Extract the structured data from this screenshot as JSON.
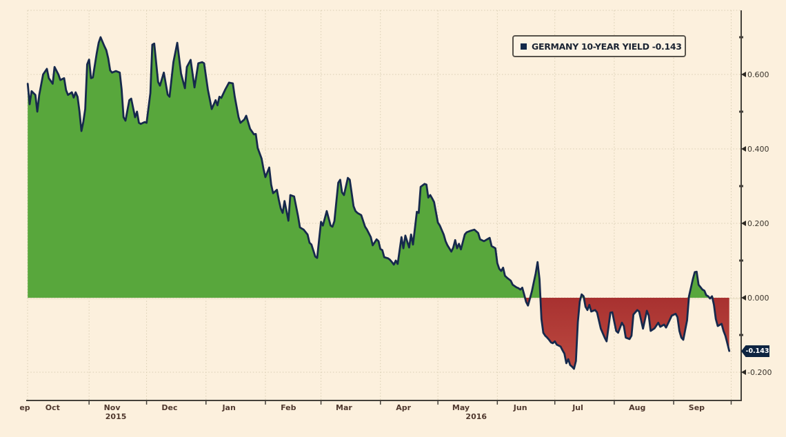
{
  "window": {
    "background": "#fcf0dd"
  },
  "legend": {
    "text": "GERMANY 10-YEAR YIELD -0.143",
    "marker": "square-icon",
    "marker_color": "#13294a"
  },
  "last_price_badge": {
    "text": "-0.143"
  },
  "chart_data": {
    "type": "area",
    "series_name": "GERMANY 10-YEAR YIELD",
    "last_value": -0.143,
    "legend_position": "top-right",
    "grid": true,
    "x_axis": {
      "start_date": "2015-09-30",
      "end_date": "2016-09-30",
      "month_tick_dates": [
        "2015-11-01",
        "2015-12-01",
        "2016-01-01",
        "2016-02-01",
        "2016-03-01",
        "2016-04-01",
        "2016-05-01",
        "2016-06-01",
        "2016-07-01",
        "2016-08-01",
        "2016-09-01",
        "2016-10-01"
      ],
      "month_labels": [
        {
          "text": "ep",
          "px": 36
        },
        {
          "text": "Oct",
          "date": "2015-10-13"
        },
        {
          "text": "Nov",
          "date": "2015-11-13"
        },
        {
          "text": "Dec",
          "date": "2015-12-13"
        },
        {
          "text": "Jan",
          "date": "2016-01-13"
        },
        {
          "text": "Feb",
          "date": "2016-02-13"
        },
        {
          "text": "Mar",
          "date": "2016-03-13"
        },
        {
          "text": "Apr",
          "date": "2016-04-13"
        },
        {
          "text": "May",
          "date": "2016-05-13"
        },
        {
          "text": "Jun",
          "date": "2016-06-13"
        },
        {
          "text": "Jul",
          "date": "2016-07-13"
        },
        {
          "text": "Aug",
          "date": "2016-08-13"
        },
        {
          "text": "Sep",
          "date": "2016-09-13"
        }
      ],
      "year_labels": [
        {
          "text": "2015",
          "date": "2015-11-15"
        },
        {
          "text": "2016",
          "date": "2016-05-21"
        }
      ]
    },
    "y_axis": {
      "range": [
        -0.276,
        0.772
      ],
      "major_ticks": [
        {
          "value": 0.6,
          "label": "0.600"
        },
        {
          "value": 0.4,
          "label": "0.400"
        },
        {
          "value": 0.2,
          "label": "0.200"
        },
        {
          "value": 0.0,
          "label": "0.000"
        },
        {
          "value": -0.2,
          "label": "-0.200"
        }
      ],
      "minor_tick_values": [
        0.7,
        0.5,
        0.3,
        0.1,
        -0.1
      ]
    },
    "colors": {
      "line": "#16294c",
      "positive_fill": "#58a73c",
      "negative_fill_top": "#a83130",
      "negative_fill_bottom": "#bf4d42",
      "grid": "#d8cdb2",
      "zero_line": "#ece2c8",
      "axis": "#44403a",
      "y_label": "#38322a",
      "x_label": "#4f382e",
      "badge_bg": "#0e2441"
    },
    "points": [
      [
        "2015-09-30",
        0.575
      ],
      [
        "2015-10-01",
        0.52
      ],
      [
        "2015-10-02",
        0.555
      ],
      [
        "2015-10-04",
        0.545
      ],
      [
        "2015-10-05",
        0.5
      ],
      [
        "2015-10-06",
        0.545
      ],
      [
        "2015-10-08",
        0.6
      ],
      [
        "2015-10-10",
        0.615
      ],
      [
        "2015-10-11",
        0.59
      ],
      [
        "2015-10-13",
        0.575
      ],
      [
        "2015-10-14",
        0.62
      ],
      [
        "2015-10-16",
        0.6
      ],
      [
        "2015-10-17",
        0.585
      ],
      [
        "2015-10-19",
        0.59
      ],
      [
        "2015-10-20",
        0.558
      ],
      [
        "2015-10-21",
        0.545
      ],
      [
        "2015-10-23",
        0.552
      ],
      [
        "2015-10-24",
        0.538
      ],
      [
        "2015-10-25",
        0.552
      ],
      [
        "2015-10-26",
        0.54
      ],
      [
        "2015-10-27",
        0.5
      ],
      [
        "2015-10-28",
        0.448
      ],
      [
        "2015-10-29",
        0.472
      ],
      [
        "2015-10-30",
        0.507
      ],
      [
        "2015-10-31",
        0.627
      ],
      [
        "2015-11-01",
        0.64
      ],
      [
        "2015-11-02",
        0.59
      ],
      [
        "2015-11-03",
        0.592
      ],
      [
        "2015-11-05",
        0.657
      ],
      [
        "2015-11-06",
        0.685
      ],
      [
        "2015-11-07",
        0.7
      ],
      [
        "2015-11-09",
        0.676
      ],
      [
        "2015-11-10",
        0.665
      ],
      [
        "2015-11-11",
        0.643
      ],
      [
        "2015-11-12",
        0.611
      ],
      [
        "2015-11-13",
        0.605
      ],
      [
        "2015-11-15",
        0.609
      ],
      [
        "2015-11-17",
        0.605
      ],
      [
        "2015-11-18",
        0.56
      ],
      [
        "2015-11-19",
        0.485
      ],
      [
        "2015-11-20",
        0.476
      ],
      [
        "2015-11-22",
        0.531
      ],
      [
        "2015-11-23",
        0.535
      ],
      [
        "2015-11-25",
        0.485
      ],
      [
        "2015-11-26",
        0.5
      ],
      [
        "2015-11-27",
        0.47
      ],
      [
        "2015-11-28",
        0.467
      ],
      [
        "2015-11-30",
        0.472
      ],
      [
        "2015-12-01",
        0.47
      ],
      [
        "2015-12-03",
        0.55
      ],
      [
        "2015-12-04",
        0.68
      ],
      [
        "2015-12-05",
        0.683
      ],
      [
        "2015-12-07",
        0.58
      ],
      [
        "2015-12-08",
        0.57
      ],
      [
        "2015-12-10",
        0.605
      ],
      [
        "2015-12-12",
        0.546
      ],
      [
        "2015-12-13",
        0.54
      ],
      [
        "2015-12-15",
        0.633
      ],
      [
        "2015-12-17",
        0.685
      ],
      [
        "2015-12-19",
        0.602
      ],
      [
        "2015-12-21",
        0.563
      ],
      [
        "2015-12-22",
        0.62
      ],
      [
        "2015-12-24",
        0.639
      ],
      [
        "2015-12-26",
        0.565
      ],
      [
        "2015-12-28",
        0.63
      ],
      [
        "2015-12-30",
        0.633
      ],
      [
        "2015-12-31",
        0.63
      ],
      [
        "2016-01-02",
        0.559
      ],
      [
        "2016-01-04",
        0.507
      ],
      [
        "2016-01-06",
        0.531
      ],
      [
        "2016-01-07",
        0.517
      ],
      [
        "2016-01-08",
        0.54
      ],
      [
        "2016-01-09",
        0.537
      ],
      [
        "2016-01-11",
        0.559
      ],
      [
        "2016-01-13",
        0.578
      ],
      [
        "2016-01-15",
        0.576
      ],
      [
        "2016-01-16",
        0.54
      ],
      [
        "2016-01-18",
        0.485
      ],
      [
        "2016-01-19",
        0.47
      ],
      [
        "2016-01-21",
        0.479
      ],
      [
        "2016-01-22",
        0.489
      ],
      [
        "2016-01-24",
        0.454
      ],
      [
        "2016-01-26",
        0.439
      ],
      [
        "2016-01-27",
        0.44
      ],
      [
        "2016-01-28",
        0.402
      ],
      [
        "2016-01-30",
        0.374
      ],
      [
        "2016-01-31",
        0.346
      ],
      [
        "2016-02-01",
        0.324
      ],
      [
        "2016-02-03",
        0.35
      ],
      [
        "2016-02-04",
        0.304
      ],
      [
        "2016-02-05",
        0.281
      ],
      [
        "2016-02-07",
        0.29
      ],
      [
        "2016-02-08",
        0.263
      ],
      [
        "2016-02-09",
        0.24
      ],
      [
        "2016-02-10",
        0.228
      ],
      [
        "2016-02-11",
        0.26
      ],
      [
        "2016-02-13",
        0.207
      ],
      [
        "2016-02-14",
        0.276
      ],
      [
        "2016-02-16",
        0.272
      ],
      [
        "2016-02-18",
        0.22
      ],
      [
        "2016-02-19",
        0.189
      ],
      [
        "2016-02-21",
        0.183
      ],
      [
        "2016-02-23",
        0.17
      ],
      [
        "2016-02-24",
        0.148
      ],
      [
        "2016-02-25",
        0.143
      ],
      [
        "2016-02-27",
        0.111
      ],
      [
        "2016-02-28",
        0.107
      ],
      [
        "2016-03-01",
        0.204
      ],
      [
        "2016-03-02",
        0.194
      ],
      [
        "2016-03-04",
        0.233
      ],
      [
        "2016-03-06",
        0.194
      ],
      [
        "2016-03-07",
        0.191
      ],
      [
        "2016-03-08",
        0.206
      ],
      [
        "2016-03-10",
        0.309
      ],
      [
        "2016-03-11",
        0.317
      ],
      [
        "2016-03-12",
        0.283
      ],
      [
        "2016-03-13",
        0.276
      ],
      [
        "2016-03-15",
        0.322
      ],
      [
        "2016-03-16",
        0.317
      ],
      [
        "2016-03-18",
        0.246
      ],
      [
        "2016-03-19",
        0.233
      ],
      [
        "2016-03-20",
        0.228
      ],
      [
        "2016-03-22",
        0.222
      ],
      [
        "2016-03-24",
        0.191
      ],
      [
        "2016-03-25",
        0.183
      ],
      [
        "2016-03-27",
        0.163
      ],
      [
        "2016-03-28",
        0.141
      ],
      [
        "2016-03-30",
        0.157
      ],
      [
        "2016-03-31",
        0.152
      ],
      [
        "2016-04-01",
        0.131
      ],
      [
        "2016-04-02",
        0.128
      ],
      [
        "2016-04-03",
        0.109
      ],
      [
        "2016-04-05",
        0.106
      ],
      [
        "2016-04-06",
        0.102
      ],
      [
        "2016-04-07",
        0.096
      ],
      [
        "2016-04-08",
        0.089
      ],
      [
        "2016-04-09",
        0.1
      ],
      [
        "2016-04-10",
        0.091
      ],
      [
        "2016-04-12",
        0.163
      ],
      [
        "2016-04-13",
        0.133
      ],
      [
        "2016-04-14",
        0.167
      ],
      [
        "2016-04-16",
        0.135
      ],
      [
        "2016-04-17",
        0.17
      ],
      [
        "2016-04-18",
        0.143
      ],
      [
        "2016-04-20",
        0.231
      ],
      [
        "2016-04-21",
        0.228
      ],
      [
        "2016-04-22",
        0.298
      ],
      [
        "2016-04-24",
        0.306
      ],
      [
        "2016-04-25",
        0.304
      ],
      [
        "2016-04-26",
        0.269
      ],
      [
        "2016-04-27",
        0.276
      ],
      [
        "2016-04-28",
        0.267
      ],
      [
        "2016-04-29",
        0.257
      ],
      [
        "2016-05-01",
        0.202
      ],
      [
        "2016-05-02",
        0.194
      ],
      [
        "2016-05-04",
        0.17
      ],
      [
        "2016-05-05",
        0.152
      ],
      [
        "2016-05-06",
        0.141
      ],
      [
        "2016-05-08",
        0.124
      ],
      [
        "2016-05-09",
        0.135
      ],
      [
        "2016-05-10",
        0.155
      ],
      [
        "2016-05-11",
        0.133
      ],
      [
        "2016-05-12",
        0.145
      ],
      [
        "2016-05-13",
        0.13
      ],
      [
        "2016-05-15",
        0.17
      ],
      [
        "2016-05-16",
        0.176
      ],
      [
        "2016-05-18",
        0.18
      ],
      [
        "2016-05-20",
        0.183
      ],
      [
        "2016-05-22",
        0.174
      ],
      [
        "2016-05-23",
        0.157
      ],
      [
        "2016-05-25",
        0.152
      ],
      [
        "2016-05-27",
        0.158
      ],
      [
        "2016-05-28",
        0.161
      ],
      [
        "2016-05-29",
        0.139
      ],
      [
        "2016-05-31",
        0.133
      ],
      [
        "2016-06-01",
        0.093
      ],
      [
        "2016-06-02",
        0.078
      ],
      [
        "2016-06-03",
        0.072
      ],
      [
        "2016-06-04",
        0.081
      ],
      [
        "2016-06-05",
        0.059
      ],
      [
        "2016-06-06",
        0.054
      ],
      [
        "2016-06-08",
        0.046
      ],
      [
        "2016-06-09",
        0.035
      ],
      [
        "2016-06-11",
        0.028
      ],
      [
        "2016-06-12",
        0.026
      ],
      [
        "2016-06-13",
        0.022
      ],
      [
        "2016-06-14",
        0.027
      ],
      [
        "2016-06-15",
        0.009
      ],
      [
        "2016-06-16",
        -0.011
      ],
      [
        "2016-06-17",
        -0.021
      ],
      [
        "2016-06-18",
        -0.002
      ],
      [
        "2016-06-19",
        0.017
      ],
      [
        "2016-06-20",
        0.041
      ],
      [
        "2016-06-21",
        0.065
      ],
      [
        "2016-06-22",
        0.096
      ],
      [
        "2016-06-23",
        0.05
      ],
      [
        "2016-06-24",
        -0.057
      ],
      [
        "2016-06-25",
        -0.094
      ],
      [
        "2016-06-26",
        -0.102
      ],
      [
        "2016-06-27",
        -0.107
      ],
      [
        "2016-06-28",
        -0.113
      ],
      [
        "2016-06-29",
        -0.12
      ],
      [
        "2016-06-30",
        -0.122
      ],
      [
        "2016-07-01",
        -0.117
      ],
      [
        "2016-07-02",
        -0.126
      ],
      [
        "2016-07-04",
        -0.131
      ],
      [
        "2016-07-05",
        -0.141
      ],
      [
        "2016-07-06",
        -0.15
      ],
      [
        "2016-07-07",
        -0.176
      ],
      [
        "2016-07-08",
        -0.165
      ],
      [
        "2016-07-09",
        -0.181
      ],
      [
        "2016-07-10",
        -0.185
      ],
      [
        "2016-07-11",
        -0.191
      ],
      [
        "2016-07-12",
        -0.17
      ],
      [
        "2016-07-13",
        -0.065
      ],
      [
        "2016-07-14",
        -0.01
      ],
      [
        "2016-07-15",
        0.009
      ],
      [
        "2016-07-16",
        0.004
      ],
      [
        "2016-07-17",
        -0.024
      ],
      [
        "2016-07-18",
        -0.033
      ],
      [
        "2016-07-19",
        -0.019
      ],
      [
        "2016-07-20",
        -0.037
      ],
      [
        "2016-07-22",
        -0.033
      ],
      [
        "2016-07-23",
        -0.039
      ],
      [
        "2016-07-25",
        -0.083
      ],
      [
        "2016-07-27",
        -0.107
      ],
      [
        "2016-07-28",
        -0.117
      ],
      [
        "2016-07-30",
        -0.04
      ],
      [
        "2016-07-31",
        -0.039
      ],
      [
        "2016-08-02",
        -0.089
      ],
      [
        "2016-08-03",
        -0.094
      ],
      [
        "2016-08-05",
        -0.067
      ],
      [
        "2016-08-06",
        -0.076
      ],
      [
        "2016-08-07",
        -0.107
      ],
      [
        "2016-08-09",
        -0.111
      ],
      [
        "2016-08-10",
        -0.102
      ],
      [
        "2016-08-11",
        -0.045
      ],
      [
        "2016-08-13",
        -0.033
      ],
      [
        "2016-08-14",
        -0.037
      ],
      [
        "2016-08-16",
        -0.083
      ],
      [
        "2016-08-18",
        -0.035
      ],
      [
        "2016-08-19",
        -0.048
      ],
      [
        "2016-08-20",
        -0.089
      ],
      [
        "2016-08-22",
        -0.082
      ],
      [
        "2016-08-24",
        -0.067
      ],
      [
        "2016-08-25",
        -0.078
      ],
      [
        "2016-08-27",
        -0.072
      ],
      [
        "2016-08-28",
        -0.08
      ],
      [
        "2016-08-29",
        -0.07
      ],
      [
        "2016-08-31",
        -0.048
      ],
      [
        "2016-09-02",
        -0.043
      ],
      [
        "2016-09-03",
        -0.052
      ],
      [
        "2016-09-04",
        -0.089
      ],
      [
        "2016-09-05",
        -0.107
      ],
      [
        "2016-09-06",
        -0.113
      ],
      [
        "2016-09-08",
        -0.061
      ],
      [
        "2016-09-09",
        0.004
      ],
      [
        "2016-09-11",
        0.05
      ],
      [
        "2016-09-12",
        0.069
      ],
      [
        "2016-09-13",
        0.07
      ],
      [
        "2016-09-14",
        0.035
      ],
      [
        "2016-09-16",
        0.022
      ],
      [
        "2016-09-17",
        0.019
      ],
      [
        "2016-09-18",
        0.007
      ],
      [
        "2016-09-19",
        0.004
      ],
      [
        "2016-09-20",
        -0.002
      ],
      [
        "2016-09-21",
        0.004
      ],
      [
        "2016-09-22",
        -0.019
      ],
      [
        "2016-09-23",
        -0.057
      ],
      [
        "2016-09-24",
        -0.076
      ],
      [
        "2016-09-26",
        -0.07
      ],
      [
        "2016-09-27",
        -0.089
      ],
      [
        "2016-09-28",
        -0.102
      ],
      [
        "2016-09-29",
        -0.122
      ],
      [
        "2016-09-30",
        -0.143
      ]
    ]
  }
}
